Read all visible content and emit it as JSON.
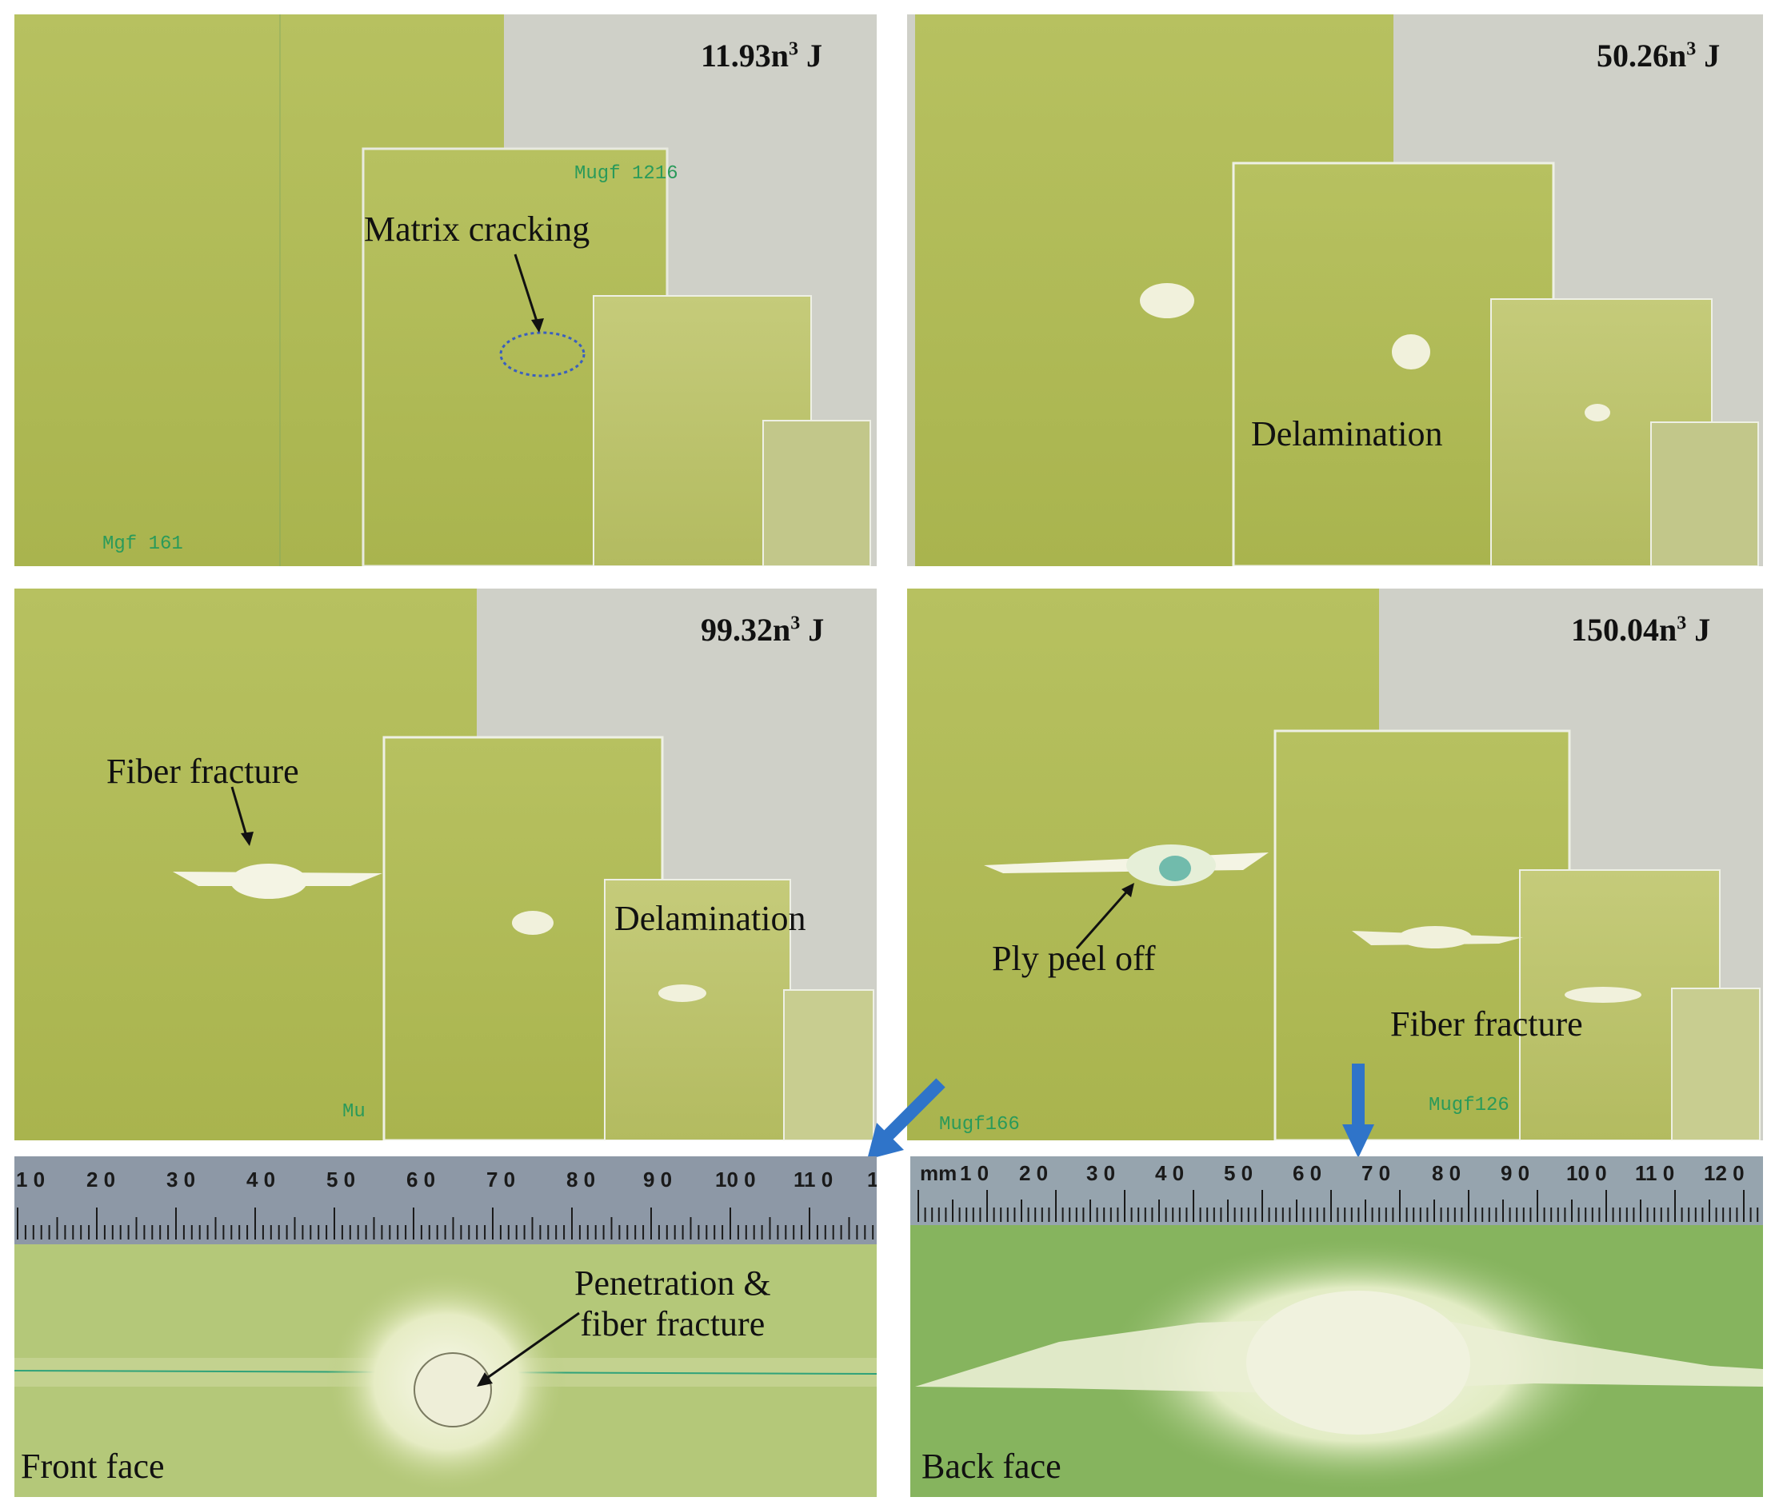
{
  "panels": {
    "p1": {
      "energy": "11.93n",
      "unit": "J",
      "exp": "3",
      "labels": [
        "Matrix cracking"
      ],
      "specimen_marks": [
        "Mugf 1216",
        "Mgf 161"
      ]
    },
    "p2": {
      "energy": "50.26n",
      "unit": "J",
      "exp": "3",
      "labels": [
        "Delamination"
      ],
      "specimen_marks": []
    },
    "p3": {
      "energy": "99.32n",
      "unit": "J",
      "exp": "3",
      "labels": [
        "Fiber fracture",
        "Delamination"
      ],
      "specimen_marks": [
        "Mu"
      ]
    },
    "p4": {
      "energy": "150.04n",
      "unit": "J",
      "exp": "3",
      "labels": [
        "Ply peel off",
        "Fiber fracture"
      ],
      "specimen_marks": [
        "Mugf166",
        "Mugf126"
      ]
    }
  },
  "closeups": {
    "front": {
      "face": "Front face",
      "label_line1": "Penetration &",
      "label_line2": "fiber fracture",
      "ruler_numbers": [
        "1 0",
        "2 0",
        "3 0",
        "4 0",
        "5 0",
        "6 0",
        "7 0",
        "8 0",
        "9 0",
        "10 0",
        "11 0",
        "1"
      ]
    },
    "back": {
      "face": "Back face",
      "ruler_unit": "mm",
      "ruler_numbers": [
        "1 0",
        "2 0",
        "3 0",
        "4 0",
        "5 0",
        "6 0",
        "7 0",
        "8 0",
        "9 0",
        "10 0",
        "11 0",
        "12 0"
      ]
    }
  },
  "colors": {
    "panel_bg": "#cfd0c8",
    "plate": "#b5bf5a",
    "arrow": "#2f74c9",
    "ruler": "#8d98a6"
  }
}
